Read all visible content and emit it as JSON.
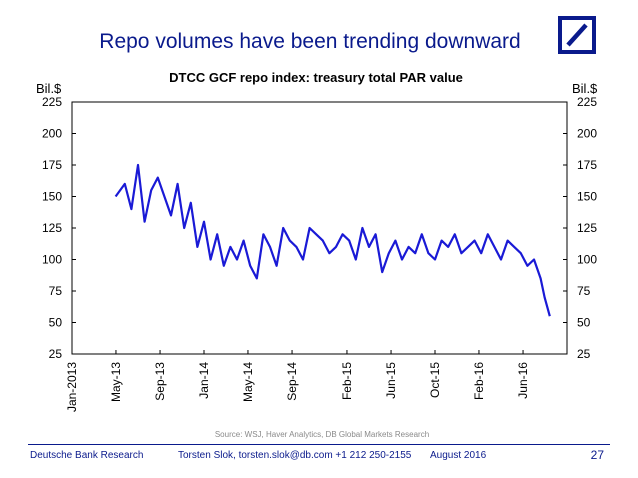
{
  "slide": {
    "title": "Repo volumes have been trending downward",
    "page_number": "27"
  },
  "footer": {
    "company": "Deutsche Bank Research",
    "author": "Torsten Slok, torsten.slok@db.com  +1 212 250-2155",
    "date": "August 2016"
  },
  "logo": {
    "name": "deutsche-bank-logo",
    "color": "#0a1a8c"
  },
  "colors": {
    "line": "#1a1ad6",
    "brand": "#0a1a8c"
  },
  "chart_data": {
    "type": "line",
    "title": "DTCC GCF repo index: treasury total PAR value",
    "ylabel_left": "Bil.$",
    "ylabel_right": "Bil.$",
    "ylim": [
      25,
      225
    ],
    "yticks": [
      25,
      50,
      75,
      100,
      125,
      150,
      175,
      200,
      225
    ],
    "xlim": [
      2013.0,
      2016.75
    ],
    "xtick_labels": [
      "Jan-2013",
      "May-13",
      "Sep-13",
      "Jan-14",
      "May-14",
      "Sep-14",
      "Feb-15",
      "Jun-15",
      "Oct-15",
      "Feb-16",
      "Jun-16"
    ],
    "xtick_positions": [
      2013.0,
      2013.333,
      2013.667,
      2014.0,
      2014.333,
      2014.667,
      2015.083,
      2015.417,
      2015.75,
      2016.083,
      2016.417
    ],
    "source": "Source: WSJ, Haver Analytics, DB Global Markets Research",
    "series": [
      {
        "name": "Treasury total PAR value",
        "x": [
          2013.33,
          2013.4,
          2013.45,
          2013.5,
          2013.55,
          2013.6,
          2013.65,
          2013.7,
          2013.75,
          2013.8,
          2013.85,
          2013.9,
          2013.95,
          2014.0,
          2014.05,
          2014.1,
          2014.15,
          2014.2,
          2014.25,
          2014.3,
          2014.35,
          2014.4,
          2014.45,
          2014.5,
          2014.55,
          2014.6,
          2014.65,
          2014.7,
          2014.75,
          2014.8,
          2014.85,
          2014.9,
          2014.95,
          2015.0,
          2015.05,
          2015.1,
          2015.15,
          2015.2,
          2015.25,
          2015.3,
          2015.35,
          2015.4,
          2015.45,
          2015.5,
          2015.55,
          2015.6,
          2015.65,
          2015.7,
          2015.75,
          2015.8,
          2015.85,
          2015.9,
          2015.95,
          2016.0,
          2016.05,
          2016.1,
          2016.15,
          2016.2,
          2016.25,
          2016.3,
          2016.35,
          2016.4,
          2016.45,
          2016.5,
          2016.55,
          2016.58,
          2016.62
        ],
        "values": [
          150,
          160,
          140,
          175,
          130,
          155,
          165,
          150,
          135,
          160,
          125,
          145,
          110,
          130,
          100,
          120,
          95,
          110,
          100,
          115,
          95,
          85,
          120,
          110,
          95,
          125,
          115,
          110,
          100,
          125,
          120,
          115,
          105,
          110,
          120,
          115,
          100,
          125,
          110,
          120,
          90,
          105,
          115,
          100,
          110,
          105,
          120,
          105,
          100,
          115,
          110,
          120,
          105,
          110,
          115,
          105,
          120,
          110,
          100,
          115,
          110,
          105,
          95,
          100,
          85,
          70,
          55
        ]
      }
    ]
  }
}
